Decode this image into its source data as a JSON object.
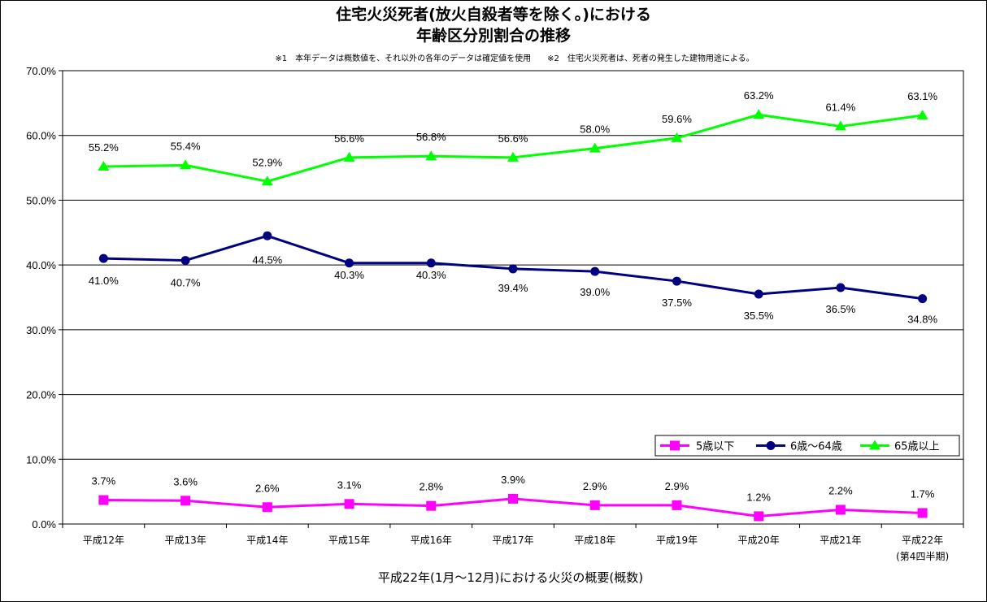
{
  "chart_data": {
    "type": "line",
    "title_line1": "住宅火災死者(放火自殺者等を除く。)における",
    "title_line2": "年齢区分別割合の推移",
    "note": "※1　本年データは概数値を、それ以外の各年のデータは確定値を使用　　※2　住宅火災死者は、死者の発生した建物用途による。",
    "categories": [
      "平成12年",
      "平成13年",
      "平成14年",
      "平成15年",
      "平成16年",
      "平成17年",
      "平成18年",
      "平成19年",
      "平成20年",
      "平成21年",
      "平成22年"
    ],
    "last_category_sub": "(第4四半期)",
    "y_ticks": [
      "0.0%",
      "10.0%",
      "20.0%",
      "30.0%",
      "40.0%",
      "50.0%",
      "60.0%",
      "70.0%"
    ],
    "ylim": [
      0,
      70
    ],
    "grid": true,
    "legend_position": "right",
    "series": [
      {
        "name": "5歳以下",
        "color": "#ff00ff",
        "marker": "square",
        "values": [
          3.7,
          3.6,
          2.6,
          3.1,
          2.8,
          3.9,
          2.9,
          2.9,
          1.2,
          2.2,
          1.7
        ],
        "labels": [
          "3.7%",
          "3.6%",
          "2.6%",
          "3.1%",
          "2.8%",
          "3.9%",
          "2.9%",
          "2.9%",
          "1.2%",
          "2.2%",
          "1.7%"
        ]
      },
      {
        "name": "6歳～64歳",
        "color": "#000080",
        "marker": "circle",
        "values": [
          41.0,
          40.7,
          44.5,
          40.3,
          40.3,
          39.4,
          39.0,
          37.5,
          35.5,
          36.5,
          34.8
        ],
        "labels": [
          "41.0%",
          "40.7%",
          "44.5%",
          "40.3%",
          "40.3%",
          "39.4%",
          "39.0%",
          "37.5%",
          "35.5%",
          "36.5%",
          "34.8%"
        ]
      },
      {
        "name": "65歳以上",
        "color": "#00ff00",
        "marker": "triangle",
        "values": [
          55.2,
          55.4,
          52.9,
          56.6,
          56.8,
          56.6,
          58.0,
          59.6,
          63.2,
          61.4,
          63.1
        ],
        "labels": [
          "55.2%",
          "55.4%",
          "52.9%",
          "56.6%",
          "56.8%",
          "56.6%",
          "58.0%",
          "59.6%",
          "63.2%",
          "61.4%",
          "63.1%"
        ]
      }
    ],
    "footer": "平成22年(1月～12月)における火災の概要(概数)"
  }
}
